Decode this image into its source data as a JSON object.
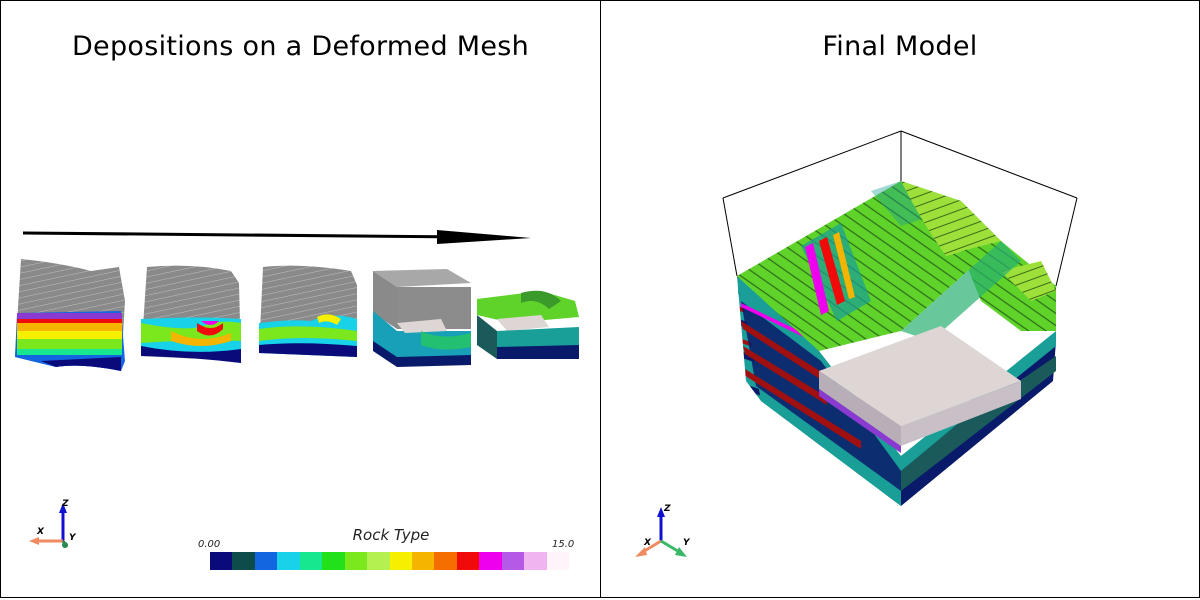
{
  "left_panel": {
    "title": "Depositions on a Deformed Mesh",
    "colorbar": {
      "title": "Rock Type",
      "min_label": "0.00",
      "max_label": "15.0",
      "colors": [
        "#0a0a7a",
        "#0e4b4b",
        "#1466e0",
        "#17d2e8",
        "#17e890",
        "#22e01a",
        "#7ae81c",
        "#b4f050",
        "#f5f000",
        "#f5b400",
        "#f56e00",
        "#f00a0a",
        "#ee00ee",
        "#b45ae6",
        "#f0b4f0",
        "#fff4fa"
      ]
    },
    "axes": {
      "z": "Z",
      "x": "X",
      "y": "Y"
    }
  },
  "right_panel": {
    "title": "Final Model",
    "axes": {
      "z": "Z",
      "x": "X",
      "y": "Y"
    }
  },
  "colors": {
    "mesh_gray": "#8c8c8c",
    "platform": "#ddd6d4",
    "green": "#5fd32a",
    "teal": "#1a9e98",
    "navy": "#0a1a6a"
  }
}
